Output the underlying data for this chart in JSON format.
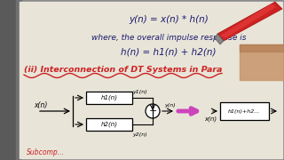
{
  "bg_color": "#8a8a8a",
  "paper_color": "#e8e4d8",
  "left_shadow": "#6a6a6a",
  "title_line1": "y(n) = x(n) * h(n)",
  "title_line2": "where, the overall impulse response is",
  "title_line3": "h(n) = h1(n) + h2(n)",
  "section_title": "(ii) Interconnection of DT Systems in Para",
  "wavy_color": "#cc2222",
  "section_color": "#cc2222",
  "arrow_color": "#cc44bb",
  "ink_color": "#1a1a6e",
  "pen_body": "#cc2222",
  "pen_tip": "#555555",
  "diagram": {
    "x_label": "x(n)",
    "h1_label": "h1(n)",
    "h2_label": "h2(n)",
    "y1_label": "y1(n)",
    "y2_label": "y2(n)",
    "y_out_label": "y(n)",
    "x_out_label": "x(n)",
    "h_sum_label": "h1(n)+h2..."
  }
}
